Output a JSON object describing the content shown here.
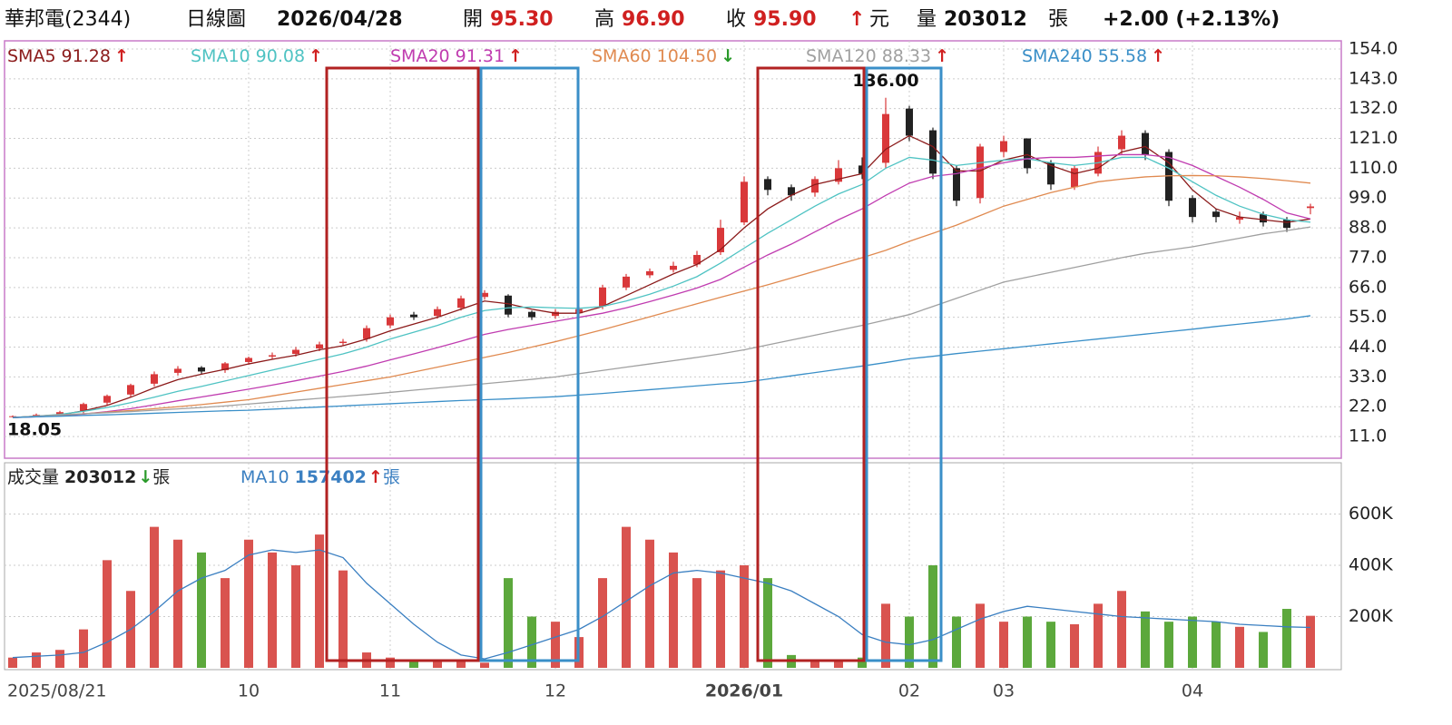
{
  "header": {
    "name": "華邦電(2344)",
    "period": "日線圖",
    "date": "2026/04/28",
    "open_label": "開",
    "open": "95.30",
    "high_label": "高",
    "high": "96.90",
    "close_label": "收",
    "close": "95.90",
    "arrow": "↑",
    "currency": "元",
    "volume_label": "量",
    "volume": "203012",
    "volume_unit": "張",
    "change": "+2.00 (+2.13%)"
  },
  "chart_data": [
    {
      "type": "candlestick",
      "up_color": "#d9383a",
      "down_color": "#222222",
      "ylim": [
        3,
        157
      ],
      "yticks": [
        {
          "value": 154,
          "label": "154.0"
        },
        {
          "value": 143,
          "label": "143.0"
        },
        {
          "value": 132,
          "label": "132.0"
        },
        {
          "value": 121,
          "label": "121.0"
        },
        {
          "value": 110,
          "label": "110.0"
        },
        {
          "value": 99,
          "label": "99.0"
        },
        {
          "value": 88,
          "label": "88.0"
        },
        {
          "value": 77,
          "label": "77.0"
        },
        {
          "value": 66,
          "label": "66.0"
        },
        {
          "value": 55,
          "label": "55.0"
        },
        {
          "value": 44,
          "label": "44.0"
        },
        {
          "value": 33,
          "label": "33.0"
        },
        {
          "value": 22,
          "label": "22.0"
        },
        {
          "value": 11,
          "label": "11.0"
        }
      ],
      "grid": true,
      "open": [
        18.3,
        18.6,
        19,
        20.5,
        23.5,
        26.5,
        30.5,
        34.5,
        36.5,
        35.5,
        38.5,
        40.5,
        41.5,
        43.5,
        45.5,
        47,
        52,
        56,
        55.5,
        58.5,
        62.5,
        63,
        57,
        55.5,
        56.5,
        59,
        66,
        70.5,
        72.5,
        74.5,
        79,
        90,
        106,
        103,
        101,
        105,
        111,
        112,
        132,
        124,
        110,
        99,
        116,
        121,
        112,
        103,
        108,
        117,
        123,
        116,
        99,
        94,
        91,
        93,
        91,
        95.3
      ],
      "high": [
        18.8,
        19.5,
        20.5,
        23.5,
        26.5,
        30.5,
        35,
        37,
        37,
        38.5,
        40.5,
        42,
        44,
        46,
        47,
        52,
        56,
        57,
        59,
        63,
        65,
        63.5,
        57.5,
        58,
        59,
        67,
        71,
        73,
        75.5,
        79.5,
        91,
        107,
        107,
        104,
        107,
        113,
        114,
        136,
        133,
        125,
        111,
        119,
        122,
        121,
        113,
        111,
        118,
        124,
        124,
        117,
        100,
        95,
        94,
        94,
        92,
        96.9
      ],
      "low": [
        18.05,
        18.5,
        18.5,
        19.5,
        22.5,
        25.5,
        29.5,
        33.5,
        34,
        34.5,
        37.5,
        39.5,
        40.5,
        42.5,
        44.5,
        46,
        51,
        54,
        54.5,
        57.5,
        61.5,
        55,
        54,
        54.5,
        55.5,
        58,
        65,
        69.5,
        71.5,
        73.5,
        78,
        89,
        100,
        98,
        99.5,
        104,
        106,
        110,
        120,
        106,
        96,
        97,
        114,
        108,
        102,
        102,
        107,
        115,
        113,
        96,
        90,
        90,
        89.5,
        88.5,
        86.5,
        93
      ],
      "close": [
        18.5,
        19,
        20,
        23,
        26,
        30,
        34,
        36,
        35,
        38,
        40,
        41,
        43,
        45,
        46,
        51,
        55,
        55,
        58,
        62,
        64,
        56,
        55,
        57,
        58,
        66,
        70,
        72,
        74,
        78,
        88,
        105,
        102,
        100,
        106,
        110,
        108,
        130,
        122,
        108,
        98,
        118,
        120,
        110,
        104,
        110,
        116,
        122,
        115,
        98,
        92,
        92,
        92,
        90,
        88,
        95.9
      ],
      "annotations": [
        {
          "x": 37,
          "value": 136,
          "label": "136.00"
        },
        {
          "x": 0,
          "value": 18.05,
          "label": "18.05"
        }
      ],
      "series": [
        {
          "name": "SMA5",
          "color": "#8b1a1a",
          "last_label": "91.28",
          "trend": "↑",
          "values": [
            18,
            18.5,
            19,
            20.5,
            22.5,
            25.5,
            29,
            32,
            34,
            35.8,
            37.8,
            39.5,
            41,
            43,
            44.5,
            47,
            50,
            52.5,
            55,
            58,
            61,
            60,
            58,
            56.5,
            56.5,
            59,
            63,
            67,
            71,
            74.5,
            80,
            88,
            95,
            100,
            104,
            106,
            108,
            117,
            122,
            118,
            109,
            109,
            113,
            115,
            111,
            108,
            110,
            116,
            118,
            112,
            102,
            95,
            92,
            91,
            90,
            91.28
          ]
        },
        {
          "name": "SMA10",
          "color": "#4fc3c3",
          "last_label": "90.08",
          "trend": "↑",
          "values": [
            18,
            18.5,
            19.2,
            20.3,
            21.7,
            23.5,
            25.5,
            27.7,
            29.5,
            31.5,
            33.5,
            35.5,
            37.5,
            39.5,
            41.5,
            44,
            47,
            49.5,
            52,
            55,
            57.5,
            58.5,
            58.8,
            58.5,
            58.3,
            59,
            61,
            63.5,
            66.5,
            70,
            75,
            80.5,
            86,
            91,
            96,
            100.5,
            104,
            110,
            114,
            113,
            111,
            112,
            113,
            113.5,
            112,
            111,
            112,
            114,
            114,
            110,
            105,
            100,
            96,
            93,
            91,
            90.08
          ]
        },
        {
          "name": "SMA20",
          "color": "#c03cb0",
          "last_label": "91.31",
          "trend": "↑",
          "values": [
            18,
            18.3,
            18.7,
            19.3,
            20.2,
            21.3,
            22.7,
            24.2,
            25.6,
            27,
            28.5,
            30,
            31.6,
            33.3,
            35,
            37,
            39.3,
            41.5,
            43.8,
            46.2,
            48.7,
            50.5,
            52,
            53.5,
            55,
            56.5,
            58.5,
            60.8,
            63.2,
            65.8,
            69,
            73.5,
            78,
            82,
            86.5,
            91,
            95,
            100,
            104.5,
            107,
            108,
            110,
            112,
            113.5,
            114,
            114,
            114.5,
            115,
            115,
            114,
            111,
            107,
            103,
            98.5,
            93.5,
            91.31
          ]
        },
        {
          "name": "SMA60",
          "color": "#e08a50",
          "last_label": "104.50",
          "trend": "↓",
          "values": [
            18,
            18.4,
            18.9,
            19.4,
            20,
            20.6,
            21.3,
            22,
            22.8,
            23.7,
            24.6,
            26,
            27.4,
            28.8,
            30.2,
            31.6,
            33,
            34.8,
            36.6,
            38.4,
            40.2,
            42,
            44,
            46,
            48.2,
            50.4,
            52.8,
            55.2,
            57.6,
            60,
            62.4,
            64.7,
            67,
            69.5,
            72,
            74.5,
            77,
            79.7,
            83,
            86,
            89,
            92.5,
            96,
            98.5,
            101,
            103,
            105,
            106,
            106.8,
            107.2,
            107.3,
            107.2,
            106.8,
            106.2,
            105.4,
            104.5
          ]
        },
        {
          "name": "SMA120",
          "color": "#a0a0a0",
          "last_label": "88.33",
          "trend": "↑",
          "values": [
            18,
            18.5,
            19,
            19.4,
            19.8,
            20.2,
            20.7,
            21.2,
            21.7,
            22.3,
            23,
            23.7,
            24.4,
            25.1,
            25.8,
            26.5,
            27.3,
            28.1,
            28.9,
            29.7,
            30.5,
            31.3,
            32.1,
            33,
            34.2,
            35.4,
            36.6,
            37.8,
            39,
            40.2,
            41.5,
            43,
            44.8,
            46.6,
            48.4,
            50.2,
            52,
            54,
            56,
            59,
            62,
            65,
            68,
            69.8,
            71.6,
            73.4,
            75.2,
            77,
            78.6,
            79.8,
            81,
            82.6,
            84.2,
            85.8,
            87,
            88.33
          ]
        },
        {
          "name": "SMA240",
          "color": "#3a8fc8",
          "last_label": "55.58",
          "trend": "↑",
          "values": [
            18,
            18.3,
            18.5,
            18.8,
            19,
            19.3,
            19.6,
            19.9,
            20.2,
            20.5,
            20.7,
            21.1,
            21.5,
            21.9,
            22.3,
            22.7,
            23.1,
            23.5,
            23.9,
            24.3,
            24.6,
            24.9,
            25.3,
            25.7,
            26.3,
            26.9,
            27.6,
            28.3,
            29,
            29.7,
            30.4,
            31,
            32.2,
            33.4,
            34.6,
            35.8,
            37,
            38.3,
            39.7,
            40.6,
            41.6,
            42.5,
            43.4,
            44.3,
            45.2,
            46.1,
            47,
            47.9,
            48.8,
            49.7,
            50.6,
            51.6,
            52.5,
            53.4,
            54.4,
            55.58
          ]
        }
      ]
    },
    {
      "type": "bar",
      "name": "成交量",
      "last_label": "203012",
      "trend": "↓",
      "unit": "張",
      "up_color": "#d9534f",
      "down_color": "#5ca83c",
      "ylim": [
        0,
        800000
      ],
      "yticks": [
        {
          "value": 600000,
          "label": "600K"
        },
        {
          "value": 400000,
          "label": "400K"
        },
        {
          "value": 200000,
          "label": "200K"
        }
      ],
      "grid": true,
      "categories": [
        "2025/08/21",
        null,
        null,
        null,
        null,
        null,
        null,
        null,
        null,
        null,
        "10",
        null,
        null,
        null,
        null,
        null,
        "11",
        null,
        null,
        null,
        null,
        null,
        null,
        "12",
        null,
        null,
        null,
        null,
        null,
        null,
        null,
        "2026/01",
        null,
        null,
        null,
        null,
        null,
        null,
        "02",
        null,
        null,
        null,
        "03",
        null,
        null,
        null,
        null,
        null,
        null,
        null,
        "04",
        null,
        null,
        null,
        null,
        null
      ],
      "values": [
        40000,
        60000,
        70000,
        150000,
        420000,
        300000,
        550000,
        500000,
        450000,
        350000,
        500000,
        450000,
        400000,
        520000,
        380000,
        60000,
        40000,
        30000,
        30000,
        25000,
        20000,
        350000,
        200000,
        180000,
        120000,
        350000,
        550000,
        500000,
        450000,
        350000,
        380000,
        400000,
        350000,
        50000,
        30000,
        30000,
        40000,
        250000,
        200000,
        400000,
        200000,
        250000,
        180000,
        200000,
        180000,
        170000,
        250000,
        300000,
        220000,
        180000,
        200000,
        180000,
        160000,
        140000,
        230000,
        203012
      ],
      "series": [
        {
          "name": "MA10",
          "color": "#3a7fc1",
          "last_label": "157402",
          "trend": "↑",
          "unit": "張",
          "values": [
            40000,
            45000,
            50000,
            60000,
            100000,
            150000,
            220000,
            300000,
            350000,
            380000,
            440000,
            460000,
            450000,
            460000,
            430000,
            330000,
            250000,
            170000,
            100000,
            50000,
            35000,
            60000,
            90000,
            120000,
            150000,
            200000,
            260000,
            320000,
            370000,
            380000,
            370000,
            350000,
            330000,
            300000,
            250000,
            200000,
            130000,
            100000,
            90000,
            110000,
            150000,
            190000,
            220000,
            240000,
            230000,
            220000,
            210000,
            200000,
            195000,
            190000,
            185000,
            180000,
            170000,
            165000,
            160000,
            157402
          ]
        }
      ]
    }
  ]
}
